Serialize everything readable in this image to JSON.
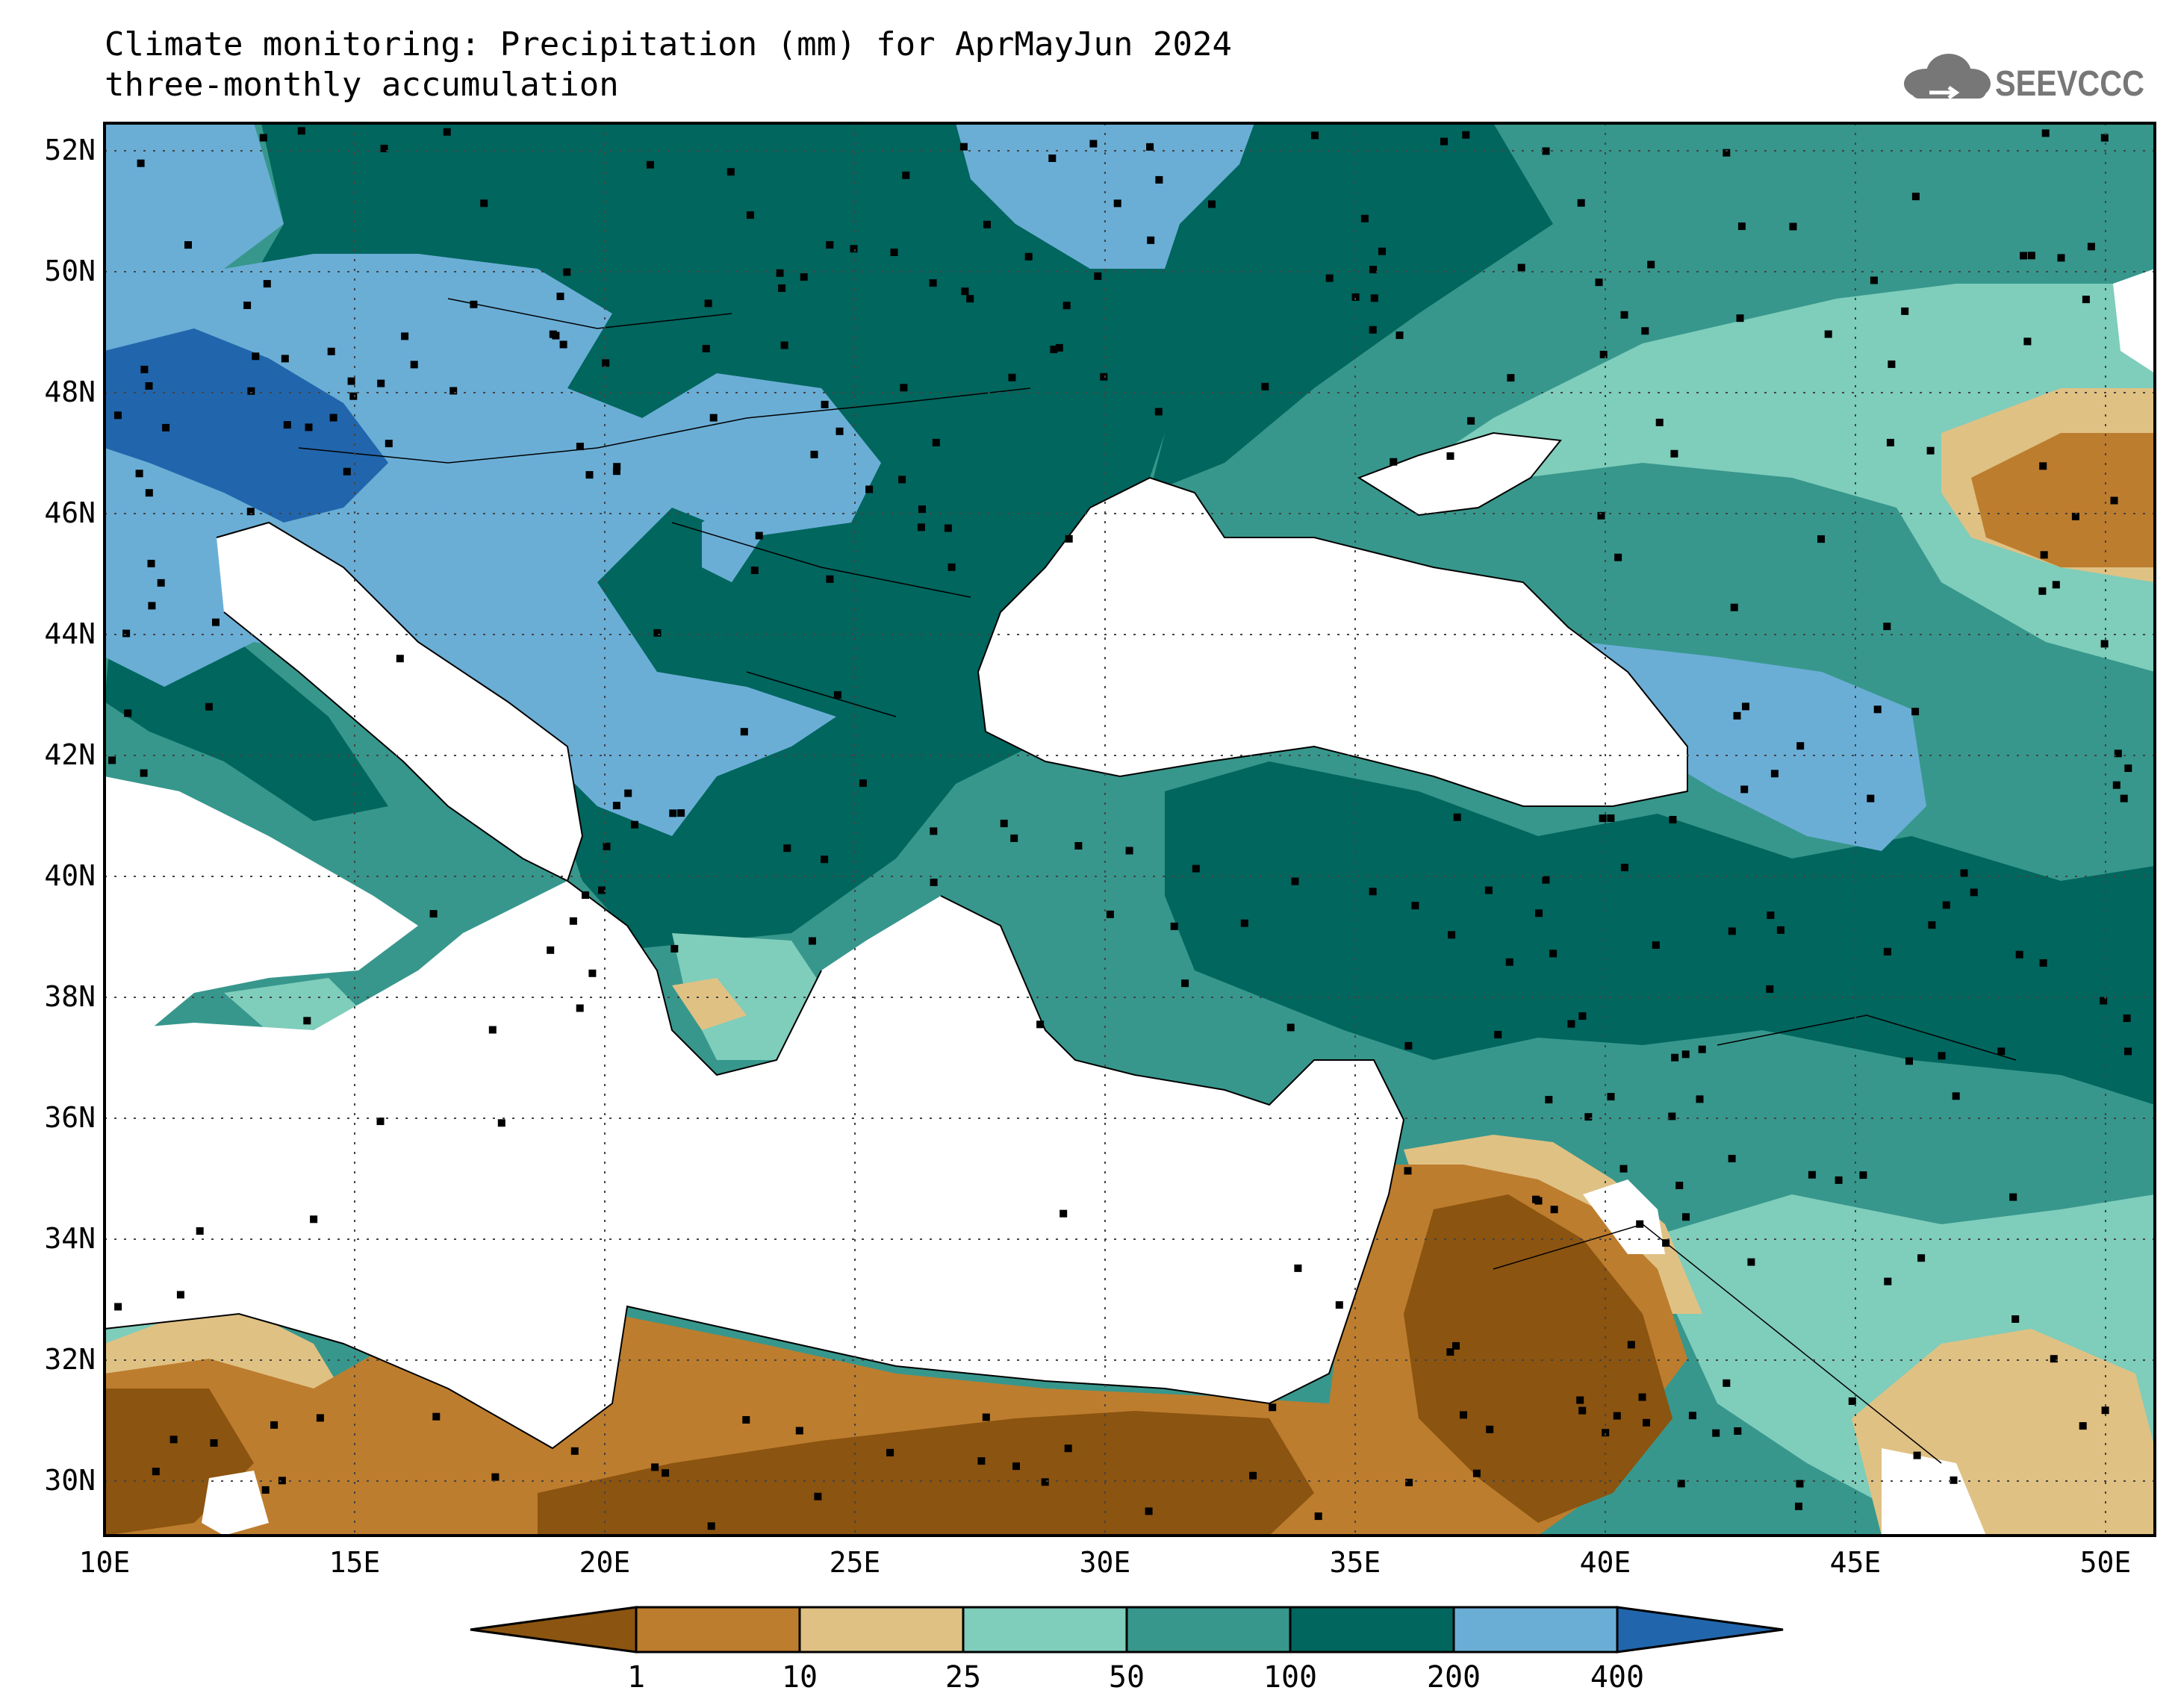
{
  "header": {
    "title_line1": "Climate monitoring: Precipitation (mm) for AprMayJun 2024",
    "title_line2": "three-monthly accumulation",
    "logo_text": "SEEVCCC"
  },
  "map": {
    "lon_labels": [
      "10E",
      "15E",
      "20E",
      "25E",
      "30E",
      "35E",
      "40E",
      "45E",
      "50E"
    ],
    "lat_labels": [
      "52N",
      "50N",
      "48N",
      "46N",
      "44N",
      "42N",
      "40N",
      "38N",
      "36N",
      "34N",
      "32N",
      "30N"
    ]
  },
  "colorbar": {
    "ticks": [
      "1",
      "10",
      "25",
      "50",
      "100",
      "200",
      "400"
    ],
    "colors": [
      "#8b5410",
      "#bd7d2e",
      "#e0c184",
      "#7fcdbb",
      "#37978c",
      "#00665e",
      "#6aaed6",
      "#2166ac"
    ]
  }
}
